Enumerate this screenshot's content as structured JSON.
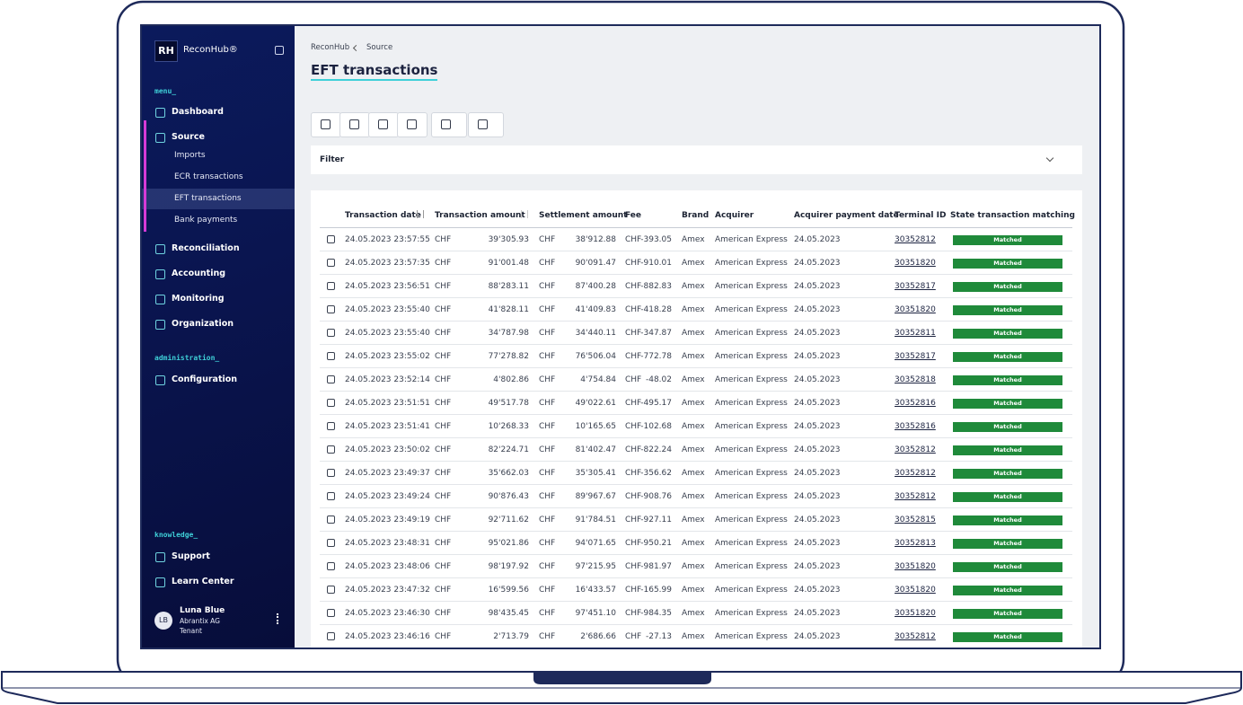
{
  "sidebar": {
    "logo": "RH",
    "brand": "ReconHub®",
    "sections": [
      {
        "label": "menu_",
        "items": [
          {
            "label": "Dashboard"
          },
          {
            "label": "Source",
            "children": [
              "Imports",
              "ECR transactions",
              "EFT transactions",
              "Bank payments"
            ]
          },
          {
            "label": "Reconciliation"
          },
          {
            "label": "Accounting"
          },
          {
            "label": "Monitoring"
          },
          {
            "label": "Organization"
          }
        ]
      },
      {
        "label": "administration_",
        "items": [
          {
            "label": "Configuration"
          }
        ]
      },
      {
        "label": "knowledge_",
        "items": [
          {
            "label": "Support"
          },
          {
            "label": "Learn Center"
          }
        ]
      }
    ],
    "user": {
      "initials": "LB",
      "name": "Luna Blue",
      "company": "Abrantix AG",
      "role": "Tenant"
    }
  },
  "breadcrumb": [
    "ReconHub",
    "Source"
  ],
  "title": "EFT transactions",
  "filter": "Filter",
  "table": {
    "headers": [
      "Transaction date",
      "Transaction amount",
      "Settlement amount",
      "Fee",
      "Brand",
      "Acquirer",
      "Acquirer payment date",
      "Terminal ID",
      "State transaction matching"
    ],
    "rows": [
      [
        "24.05.2023 23:57:55",
        "CHF",
        "39'305.93",
        "CHF",
        "38'912.88",
        "CHF",
        "-393.05",
        "Amex",
        "American Express",
        "24.05.2023",
        "30352812",
        "Matched"
      ],
      [
        "24.05.2023 23:57:35",
        "CHF",
        "91'001.48",
        "CHF",
        "90'091.47",
        "CHF",
        "-910.01",
        "Amex",
        "American Express",
        "24.05.2023",
        "30351820",
        "Matched"
      ],
      [
        "24.05.2023 23:56:51",
        "CHF",
        "88'283.11",
        "CHF",
        "87'400.28",
        "CHF",
        "-882.83",
        "Amex",
        "American Express",
        "24.05.2023",
        "30352817",
        "Matched"
      ],
      [
        "24.05.2023 23:55:40",
        "CHF",
        "41'828.11",
        "CHF",
        "41'409.83",
        "CHF",
        "-418.28",
        "Amex",
        "American Express",
        "24.05.2023",
        "30351820",
        "Matched"
      ],
      [
        "24.05.2023 23:55:40",
        "CHF",
        "34'787.98",
        "CHF",
        "34'440.11",
        "CHF",
        "-347.87",
        "Amex",
        "American Express",
        "24.05.2023",
        "30352811",
        "Matched"
      ],
      [
        "24.05.2023 23:55:02",
        "CHF",
        "77'278.82",
        "CHF",
        "76'506.04",
        "CHF",
        "-772.78",
        "Amex",
        "American Express",
        "24.05.2023",
        "30352817",
        "Matched"
      ],
      [
        "24.05.2023 23:52:14",
        "CHF",
        "4'802.86",
        "CHF",
        "4'754.84",
        "CHF",
        "-48.02",
        "Amex",
        "American Express",
        "24.05.2023",
        "30352818",
        "Matched"
      ],
      [
        "24.05.2023 23:51:51",
        "CHF",
        "49'517.78",
        "CHF",
        "49'022.61",
        "CHF",
        "-495.17",
        "Amex",
        "American Express",
        "24.05.2023",
        "30352816",
        "Matched"
      ],
      [
        "24.05.2023 23:51:41",
        "CHF",
        "10'268.33",
        "CHF",
        "10'165.65",
        "CHF",
        "-102.68",
        "Amex",
        "American Express",
        "24.05.2023",
        "30352816",
        "Matched"
      ],
      [
        "24.05.2023 23:50:02",
        "CHF",
        "82'224.71",
        "CHF",
        "81'402.47",
        "CHF",
        "-822.24",
        "Amex",
        "American Express",
        "24.05.2023",
        "30352812",
        "Matched"
      ],
      [
        "24.05.2023 23:49:37",
        "CHF",
        "35'662.03",
        "CHF",
        "35'305.41",
        "CHF",
        "-356.62",
        "Amex",
        "American Express",
        "24.05.2023",
        "30352812",
        "Matched"
      ],
      [
        "24.05.2023 23:49:24",
        "CHF",
        "90'876.43",
        "CHF",
        "89'967.67",
        "CHF",
        "-908.76",
        "Amex",
        "American Express",
        "24.05.2023",
        "30352812",
        "Matched"
      ],
      [
        "24.05.2023 23:49:19",
        "CHF",
        "92'711.62",
        "CHF",
        "91'784.51",
        "CHF",
        "-927.11",
        "Amex",
        "American Express",
        "24.05.2023",
        "30352815",
        "Matched"
      ],
      [
        "24.05.2023 23:48:31",
        "CHF",
        "95'021.86",
        "CHF",
        "94'071.65",
        "CHF",
        "-950.21",
        "Amex",
        "American Express",
        "24.05.2023",
        "30352813",
        "Matched"
      ],
      [
        "24.05.2023 23:48:06",
        "CHF",
        "98'197.92",
        "CHF",
        "97'215.95",
        "CHF",
        "-981.97",
        "Amex",
        "American Express",
        "24.05.2023",
        "30351820",
        "Matched"
      ],
      [
        "24.05.2023 23:47:32",
        "CHF",
        "16'599.56",
        "CHF",
        "16'433.57",
        "CHF",
        "-165.99",
        "Amex",
        "American Express",
        "24.05.2023",
        "30351820",
        "Matched"
      ],
      [
        "24.05.2023 23:46:30",
        "CHF",
        "98'435.45",
        "CHF",
        "97'451.10",
        "CHF",
        "-984.35",
        "Amex",
        "American Express",
        "24.05.2023",
        "30351820",
        "Matched"
      ],
      [
        "24.05.2023 23:46:16",
        "CHF",
        "2'713.79",
        "CHF",
        "2'686.66",
        "CHF",
        "-27.13",
        "Amex",
        "American Express",
        "24.05.2023",
        "30352812",
        "Matched"
      ]
    ]
  }
}
